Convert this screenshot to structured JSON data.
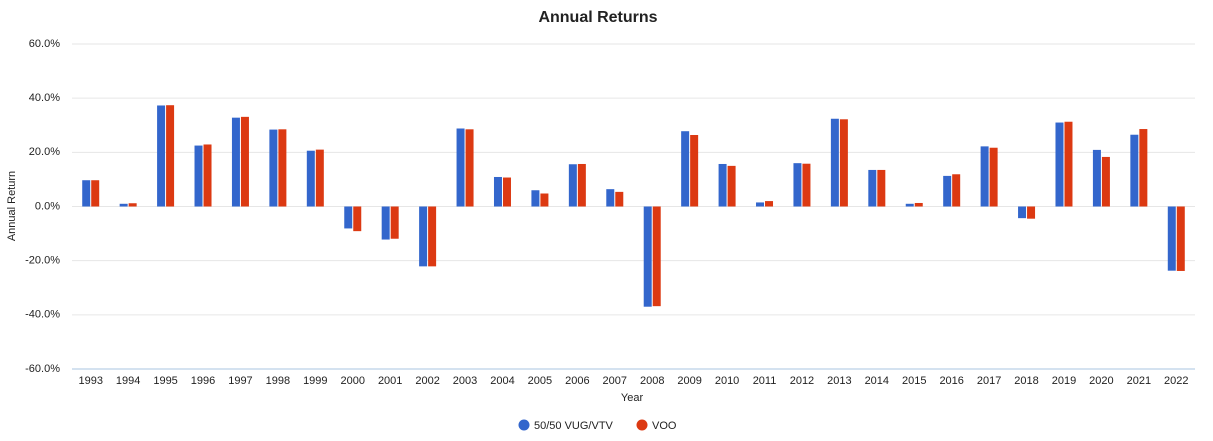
{
  "chart_data": {
    "type": "bar",
    "title": "Annual Returns",
    "x_label": "Year",
    "y_label": "Annual Return",
    "categories": [
      "1993",
      "1994",
      "1995",
      "1996",
      "1997",
      "1998",
      "1999",
      "2000",
      "2001",
      "2002",
      "2003",
      "2004",
      "2005",
      "2006",
      "2007",
      "2008",
      "2009",
      "2010",
      "2011",
      "2012",
      "2013",
      "2014",
      "2015",
      "2016",
      "2017",
      "2018",
      "2019",
      "2020",
      "2021",
      "2022"
    ],
    "series": [
      {
        "name": "50/50 VUG/VTV",
        "color": "#3366cc",
        "values": [
          9.7,
          1.0,
          37.3,
          22.5,
          32.8,
          28.4,
          20.6,
          -8.1,
          -12.2,
          -22.1,
          28.8,
          10.9,
          6.0,
          15.6,
          6.4,
          -37.0,
          27.8,
          15.7,
          1.5,
          16.0,
          32.4,
          13.5,
          1.0,
          11.3,
          22.2,
          -4.3,
          31.0,
          20.9,
          26.5,
          -23.7
        ]
      },
      {
        "name": "VOO",
        "color": "#dc3912",
        "values": [
          9.7,
          1.2,
          37.4,
          22.9,
          33.1,
          28.5,
          21.0,
          -9.1,
          -11.9,
          -22.1,
          28.5,
          10.7,
          4.8,
          15.7,
          5.4,
          -36.8,
          26.4,
          15.0,
          2.0,
          15.8,
          32.2,
          13.5,
          1.3,
          11.9,
          21.7,
          -4.5,
          31.3,
          18.3,
          28.6,
          -23.8
        ]
      }
    ],
    "ylim": [
      -60,
      60
    ],
    "yticks": [
      {
        "value": -60,
        "label": "-60.0%"
      },
      {
        "value": -40,
        "label": "-40.0%"
      },
      {
        "value": -20,
        "label": "-20.0%"
      },
      {
        "value": 0,
        "label": "0.0%"
      },
      {
        "value": 20,
        "label": "20.0%"
      },
      {
        "value": 40,
        "label": "40.0%"
      },
      {
        "value": 60,
        "label": "60.0%"
      }
    ],
    "grid": true,
    "legend": "bottom"
  }
}
